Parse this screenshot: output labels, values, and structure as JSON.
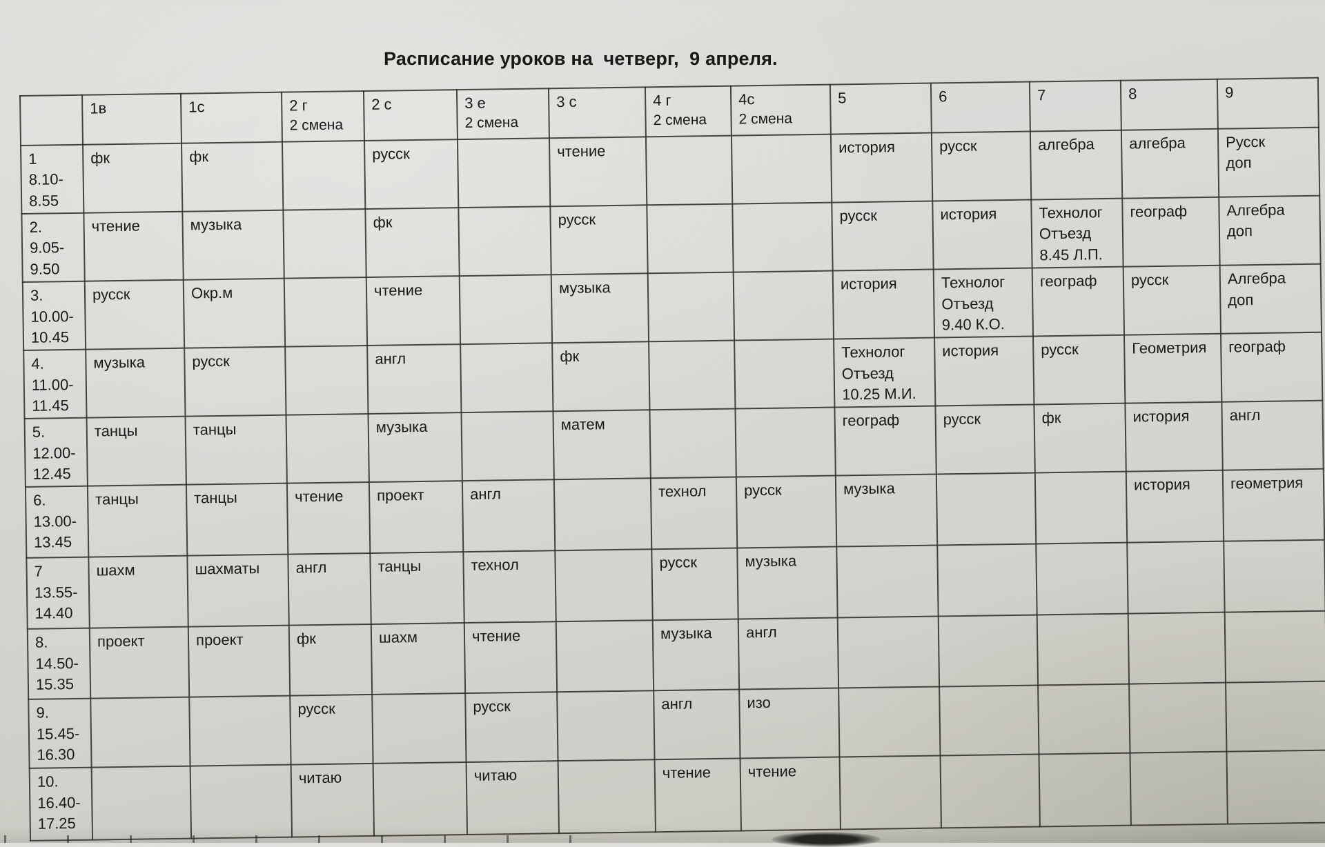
{
  "page": {
    "title": "Расписание уроков на  четверг,  9 апреля.",
    "colors": {
      "paper": "#d6d5d0",
      "ink": "#1b1a18",
      "grid_line": "#302e28"
    }
  },
  "table": {
    "columns": [
      {
        "label": "",
        "sub": ""
      },
      {
        "label": "1в",
        "sub": ""
      },
      {
        "label": "1с",
        "sub": ""
      },
      {
        "label": "2 г",
        "sub": "2 смена"
      },
      {
        "label": "2 с",
        "sub": ""
      },
      {
        "label": "3 е",
        "sub": "2 смена"
      },
      {
        "label": "3 с",
        "sub": ""
      },
      {
        "label": "4 г",
        "sub": "2 смена"
      },
      {
        "label": "4с",
        "sub": "2 смена"
      },
      {
        "label": "5",
        "sub": ""
      },
      {
        "label": "6",
        "sub": ""
      },
      {
        "label": "7",
        "sub": ""
      },
      {
        "label": "8",
        "sub": ""
      },
      {
        "label": "9",
        "sub": ""
      }
    ],
    "rows": [
      {
        "num": "1",
        "time": "8.10-\n8.55",
        "cells": [
          "фк",
          "фк",
          "",
          "русск",
          "",
          "чтение",
          "",
          "",
          "история",
          "русск",
          "алгебра",
          "алгебра",
          "Русск\nдоп"
        ]
      },
      {
        "num": "2.",
        "time": "9.05-\n9.50",
        "cells": [
          "чтение",
          "музыка",
          "",
          "фк",
          "",
          "русск",
          "",
          "",
          "русск",
          "история",
          "Технолог\nОтъезд\n8.45 Л.П.",
          "географ",
          "Алгебра\nдоп"
        ]
      },
      {
        "num": "3.",
        "time": "10.00-\n10.45",
        "cells": [
          "русск",
          "Окр.м",
          "",
          "чтение",
          "",
          "музыка",
          "",
          "",
          "история",
          "Технолог\nОтъезд\n9.40 К.О.",
          "географ",
          "русск",
          "Алгебра\nдоп"
        ]
      },
      {
        "num": "4.",
        "time": "11.00-\n11.45",
        "cells": [
          "музыка",
          "русск",
          "",
          "англ",
          "",
          "фк",
          "",
          "",
          "Технолог\nОтъезд\n10.25 М.И.",
          "история",
          "русск",
          "Геометрия",
          "географ"
        ]
      },
      {
        "num": "5.",
        "time": "12.00-\n12.45",
        "cells": [
          "танцы",
          "танцы",
          "",
          "музыка",
          "",
          "матем",
          "",
          "",
          "географ",
          "русск",
          "фк",
          "история",
          "англ"
        ]
      },
      {
        "num": "6.",
        "time": "13.00-\n13.45",
        "cells": [
          "танцы",
          "танцы",
          "чтение",
          "проект",
          "англ",
          "",
          "технол",
          "русск",
          "музыка",
          "",
          "",
          "история",
          "геометрия"
        ]
      },
      {
        "num": "7",
        "time": "13.55-\n14.40",
        "cells": [
          "шахм",
          "шахматы",
          "англ",
          "танцы",
          "технол",
          "",
          "русск",
          "музыка",
          "",
          "",
          "",
          "",
          ""
        ]
      },
      {
        "num": "8.",
        "time": "14.50-\n15.35",
        "cells": [
          "проект",
          "проект",
          "фк",
          "шахм",
          "чтение",
          "",
          "музыка",
          "англ",
          "",
          "",
          "",
          "",
          ""
        ]
      },
      {
        "num": "9.",
        "time": "15.45-\n16.30",
        "cells": [
          "",
          "",
          "русск",
          "",
          "русск",
          "",
          "англ",
          "изо",
          "",
          "",
          "",
          "",
          ""
        ]
      },
      {
        "num": "10.",
        "time": "16.40-\n17.25",
        "cells": [
          "",
          "",
          "читаю",
          "",
          "читаю",
          "",
          "чтение",
          "чтение",
          "",
          "",
          "",
          "",
          ""
        ]
      }
    ]
  }
}
